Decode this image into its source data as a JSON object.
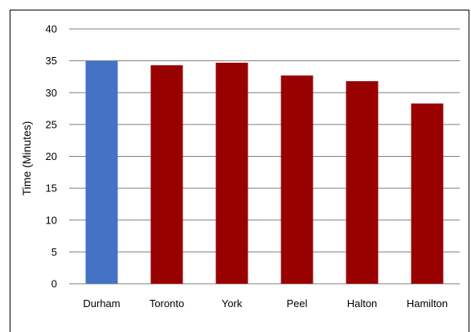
{
  "chart_data": {
    "type": "bar",
    "title": "",
    "xlabel": "",
    "ylabel": "Time (Minutes)",
    "ylim": [
      0,
      40
    ],
    "yticks": [
      0,
      5,
      10,
      15,
      20,
      25,
      30,
      35,
      40
    ],
    "categories": [
      "Durham",
      "Toronto",
      "York",
      "Peel",
      "Halton",
      "Hamilton"
    ],
    "values": [
      35.0,
      34.3,
      34.7,
      32.7,
      31.8,
      28.3
    ],
    "colors": [
      "#4472c4",
      "#990000",
      "#990000",
      "#990000",
      "#990000",
      "#990000"
    ],
    "grid": true,
    "legend": "none"
  }
}
